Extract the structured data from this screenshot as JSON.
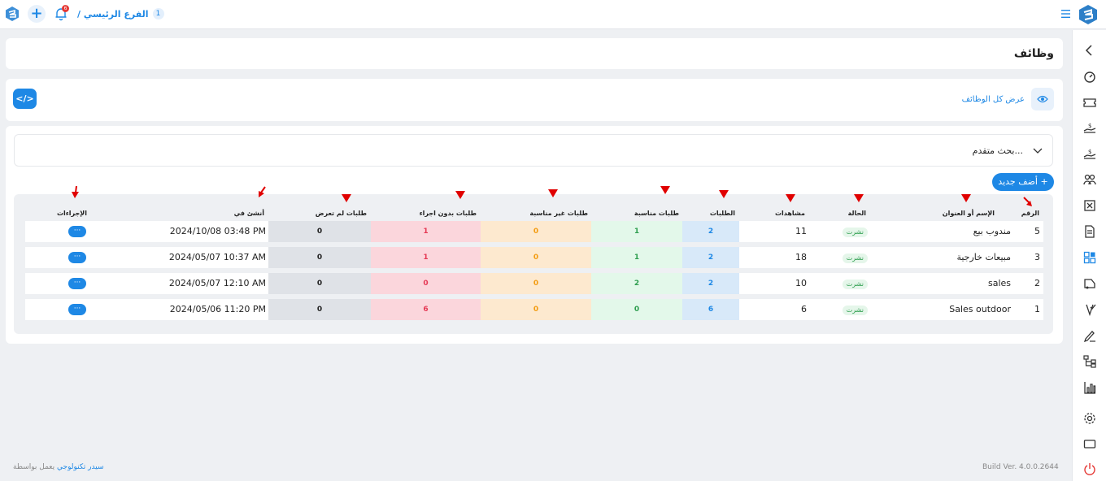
{
  "topbar": {
    "branch_label": "الفرع الرئيسي /",
    "branch_number": "1",
    "notification_count": "6"
  },
  "page": {
    "title": "وظائف"
  },
  "view": {
    "view_all_label": "عرض كل الوظائف",
    "code_button_label": "</>"
  },
  "search": {
    "advanced_label": "بحث متقدم..."
  },
  "add_button_label": "+ أضف جديد",
  "table": {
    "headers": {
      "number": "الرقم",
      "title": "الإسم أو العنوان",
      "status": "الحالة",
      "views": "مشاهدات",
      "applications": "الطلبات",
      "suitable": "طلبات مناسبة",
      "unsuitable": "طلبات غير مناسبة",
      "no_action": "طلبات بدون اجراء",
      "not_viewed": "طلبات لم تعرض",
      "created_at": "أنشئ في",
      "actions": "الإجراءات"
    },
    "rows": [
      {
        "number": "5",
        "title": "مندوب بيع",
        "status": "نشرت",
        "views": "11",
        "applications": "2",
        "suitable": "1",
        "unsuitable": "0",
        "no_action": "1",
        "not_viewed": "0",
        "created_at": "2024/10/08 03:48 PM",
        "action": "···"
      },
      {
        "number": "3",
        "title": "مبيعات خارجية",
        "status": "نشرت",
        "views": "18",
        "applications": "2",
        "suitable": "1",
        "unsuitable": "0",
        "no_action": "1",
        "not_viewed": "0",
        "created_at": "2024/05/07 10:37 AM",
        "action": "···"
      },
      {
        "number": "2",
        "title": "sales",
        "status": "نشرت",
        "views": "10",
        "applications": "2",
        "suitable": "2",
        "unsuitable": "0",
        "no_action": "0",
        "not_viewed": "0",
        "created_at": "2024/05/07 12:10 AM",
        "action": "···"
      },
      {
        "number": "1",
        "title": "Sales outdoor",
        "status": "نشرت",
        "views": "6",
        "applications": "6",
        "suitable": "0",
        "unsuitable": "0",
        "no_action": "6",
        "not_viewed": "0",
        "created_at": "2024/05/06 11:20 PM",
        "action": "···"
      }
    ]
  },
  "footer": {
    "powered_by": "يعمل بواسطة",
    "company": "سيدر تكنولوجي",
    "build": "Build Ver. 4.0.0.2644"
  },
  "colors": {
    "accent": "#1e88e5",
    "applications_bg": "#d8e9f9",
    "suitable_bg": "#e3f8ea",
    "unsuitable_bg": "#fde9cf",
    "no_action_bg": "#fbd6dc",
    "not_viewed_bg": "#dfe2e7",
    "arrow": "#e00000"
  },
  "icons": {
    "sidebar": [
      "chevron-left-icon",
      "dashboard-gauge-icon",
      "ticket-icon",
      "money-hand-icon",
      "payroll-hand-icon",
      "team-users-icon",
      "excel-file-icon",
      "document-icon",
      "add-grid-icon",
      "vehicle-icon",
      "badge-check-icon",
      "signature-pen-icon",
      "org-chart-icon",
      "bar-chart-icon",
      "settings-gear-icon",
      "monitor-icon",
      "power-icon"
    ]
  }
}
